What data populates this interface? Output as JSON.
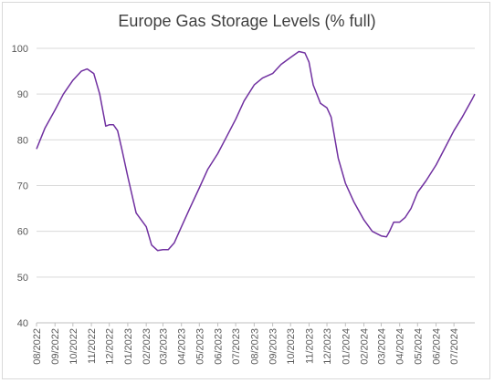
{
  "chart_data": {
    "type": "line",
    "title": "Europe Gas Storage Levels (% full)",
    "xlabel": "",
    "ylabel": "",
    "ylim": [
      40,
      100
    ],
    "yticks": [
      40,
      50,
      60,
      70,
      80,
      90,
      100
    ],
    "grid": "horizontal",
    "legend": "none",
    "xticks": [
      "08/2022",
      "09/2022",
      "10/2022",
      "11/2022",
      "12/2022",
      "01/2023",
      "02/2023",
      "03/2023",
      "04/2023",
      "05/2023",
      "06/2023",
      "07/2023",
      "08/2023",
      "09/2023",
      "10/2023",
      "11/2023",
      "12/2023",
      "01/2024",
      "02/2024",
      "03/2024",
      "04/2024",
      "05/2024",
      "06/2024",
      "07/2024"
    ],
    "series": [
      {
        "color": "#7030a0",
        "points": [
          [
            "2022-08-01",
            78
          ],
          [
            "2022-08-15",
            82.5
          ],
          [
            "2022-09-01",
            86.5
          ],
          [
            "2022-09-15",
            90
          ],
          [
            "2022-10-01",
            93
          ],
          [
            "2022-10-15",
            95
          ],
          [
            "2022-10-25",
            95.5
          ],
          [
            "2022-11-05",
            94.5
          ],
          [
            "2022-11-15",
            90
          ],
          [
            "2022-11-25",
            83
          ],
          [
            "2022-12-01",
            83.3
          ],
          [
            "2022-12-08",
            83.3
          ],
          [
            "2022-12-15",
            82
          ],
          [
            "2022-12-22",
            78
          ],
          [
            "2023-01-01",
            72
          ],
          [
            "2023-01-15",
            64
          ],
          [
            "2023-02-01",
            61
          ],
          [
            "2023-02-10",
            57
          ],
          [
            "2023-02-20",
            55.8
          ],
          [
            "2023-03-01",
            56
          ],
          [
            "2023-03-10",
            56
          ],
          [
            "2023-03-20",
            57.5
          ],
          [
            "2023-04-01",
            61
          ],
          [
            "2023-04-15",
            65
          ],
          [
            "2023-05-01",
            69.5
          ],
          [
            "2023-05-15",
            73.5
          ],
          [
            "2023-06-01",
            77
          ],
          [
            "2023-06-15",
            80.5
          ],
          [
            "2023-07-01",
            84.5
          ],
          [
            "2023-07-15",
            88.5
          ],
          [
            "2023-08-01",
            92
          ],
          [
            "2023-08-15",
            93.5
          ],
          [
            "2023-09-01",
            94.5
          ],
          [
            "2023-09-15",
            96.5
          ],
          [
            "2023-10-01",
            98
          ],
          [
            "2023-10-15",
            99.3
          ],
          [
            "2023-10-25",
            99
          ],
          [
            "2023-11-01",
            97
          ],
          [
            "2023-11-08",
            92
          ],
          [
            "2023-11-20",
            88
          ],
          [
            "2023-12-01",
            87
          ],
          [
            "2023-12-08",
            85
          ],
          [
            "2023-12-20",
            76
          ],
          [
            "2024-01-01",
            70.5
          ],
          [
            "2024-01-15",
            66.5
          ],
          [
            "2024-02-01",
            62.5
          ],
          [
            "2024-02-15",
            60
          ],
          [
            "2024-03-01",
            59
          ],
          [
            "2024-03-10",
            58.8
          ],
          [
            "2024-03-15",
            60
          ],
          [
            "2024-03-22",
            62
          ],
          [
            "2024-04-01",
            62
          ],
          [
            "2024-04-10",
            63
          ],
          [
            "2024-04-20",
            65
          ],
          [
            "2024-05-01",
            68.5
          ],
          [
            "2024-05-15",
            71
          ],
          [
            "2024-06-01",
            74.5
          ],
          [
            "2024-06-15",
            78
          ],
          [
            "2024-07-01",
            82
          ],
          [
            "2024-07-15",
            85
          ],
          [
            "2024-08-01",
            89
          ],
          [
            "2024-08-05",
            90
          ]
        ]
      }
    ]
  }
}
